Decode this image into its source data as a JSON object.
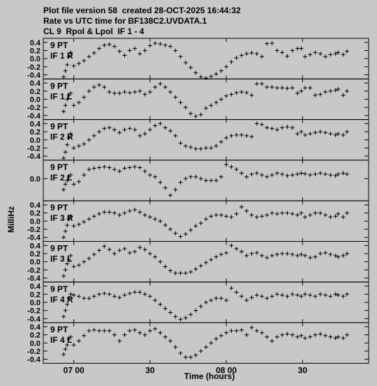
{
  "header": {
    "line1": "Plot file version 58  created 28-OCT-2025 16:44:32",
    "line2": "Rate vs UTC time for BF138C2.UVDATA.1",
    "line3": "CL 9  Rpol & Lpol  IF 1 - 4"
  },
  "chart_data": {
    "type": "scatter",
    "xlabel": "Time (hours)",
    "ylabel": "MilliHz",
    "x_ticks": [
      "07 00",
      "30",
      "08 00",
      "30"
    ],
    "x_tick_values_minutes": [
      0,
      30,
      60,
      90
    ],
    "xlim_minutes": [
      -12,
      116
    ],
    "marker": "+",
    "panels": [
      {
        "label_pt": "9 PT",
        "label_if": "IF 1 R",
        "ylim": [
          -0.5,
          0.5
        ],
        "y_ticks": [
          "0.4",
          "0.2",
          "0.0",
          "-0.2",
          "-0.4"
        ],
        "tick_values": [
          0.4,
          0.2,
          0.0,
          -0.2,
          -0.4
        ],
        "x": [
          -4,
          -3.3,
          -2.6,
          -1.9,
          -1.2,
          0,
          2,
          4,
          6,
          8,
          10,
          12,
          14,
          16,
          18,
          20,
          22,
          24,
          26,
          28,
          30,
          32,
          34,
          36,
          38,
          40,
          42,
          44,
          46,
          48,
          50,
          52,
          54,
          56,
          58,
          60,
          62,
          64,
          66,
          68,
          70,
          72,
          74,
          76,
          78,
          80,
          82,
          84,
          86,
          88,
          89.5,
          91,
          93,
          95,
          97,
          99,
          101,
          103,
          104,
          106,
          107.5
        ],
        "y": [
          -0.45,
          -0.3,
          -0.15,
          0.05,
          0.15,
          -0.18,
          -0.12,
          -0.05,
          0.05,
          0.14,
          0.25,
          0.33,
          0.35,
          0.3,
          0.18,
          0.08,
          0.2,
          0.25,
          0.12,
          0.2,
          0.32,
          0.38,
          0.36,
          0.33,
          0.3,
          0.2,
          0.05,
          -0.1,
          -0.22,
          -0.35,
          -0.45,
          -0.48,
          -0.44,
          -0.38,
          -0.3,
          -0.2,
          -0.08,
          0.02,
          0.08,
          0.12,
          0.14,
          0.12,
          0.05,
          0.37,
          0.38,
          0.2,
          0.15,
          0.06,
          0.2,
          0.25,
          0.25,
          0.05,
          0.1,
          0.15,
          0.12,
          0.05,
          0.1,
          0.12,
          0.15,
          0.1,
          0.18
        ]
      },
      {
        "label_pt": "9 PT",
        "label_if": "IF 1 L",
        "ylim": [
          -0.5,
          0.5
        ],
        "y_ticks": [
          "0.4",
          "0.2",
          "0.0",
          "-0.2",
          "-0.4"
        ],
        "tick_values": [
          0.4,
          0.2,
          0.0,
          -0.2,
          -0.4
        ],
        "x": [
          -4,
          -3.3,
          -2.6,
          -1.9,
          -1.2,
          0,
          2,
          4,
          6,
          8,
          10,
          12,
          14,
          16,
          18,
          20,
          22,
          24,
          26,
          28,
          30,
          32,
          34,
          36,
          38,
          40,
          42,
          44,
          46,
          48,
          50,
          52,
          54,
          56,
          58,
          60,
          62,
          64,
          66,
          68,
          70,
          72,
          74,
          76,
          78,
          80,
          82,
          84,
          86,
          88,
          89.5,
          91,
          93,
          95,
          97,
          99,
          101,
          103,
          104,
          106,
          107.5
        ],
        "y": [
          -0.3,
          -0.15,
          0,
          0.1,
          0.15,
          -0.15,
          -0.08,
          0.05,
          0.2,
          0.3,
          0.35,
          0.3,
          0.18,
          0.15,
          0.15,
          0.18,
          0.16,
          0.18,
          0.2,
          0.12,
          0.18,
          0.3,
          0.38,
          0.3,
          0.18,
          0.05,
          -0.08,
          -0.2,
          -0.35,
          -0.42,
          -0.38,
          -0.22,
          -0.15,
          -0.08,
          0,
          0.08,
          0.12,
          0.16,
          0.18,
          0.16,
          0.1,
          0.38,
          0.38,
          0.3,
          0.3,
          0.28,
          0.28,
          0.27,
          0.28,
          0.15,
          0.2,
          0.28,
          0.28,
          0.1,
          0.12,
          0.18,
          0.2,
          0.22,
          0.25,
          0.1,
          0.2
        ]
      },
      {
        "label_pt": "9 PT",
        "label_if": "IF 2 R",
        "ylim": [
          -0.5,
          0.5
        ],
        "y_ticks": [
          "0.4",
          "0.2",
          "0.0",
          "-0.2",
          "-0.4"
        ],
        "tick_values": [
          0.4,
          0.2,
          0.0,
          -0.2,
          -0.4
        ],
        "x": [
          -4,
          -3.3,
          -2.6,
          -1.9,
          -1.2,
          0,
          2,
          4,
          6,
          8,
          10,
          12,
          14,
          16,
          18,
          20,
          22,
          24,
          26,
          28,
          30,
          32,
          34,
          36,
          38,
          40,
          42,
          44,
          46,
          48,
          50,
          52,
          54,
          56,
          58,
          60,
          62,
          64,
          66,
          68,
          70,
          72,
          74,
          76,
          78,
          80,
          82,
          84,
          86,
          88,
          89.5,
          91,
          93,
          95,
          97,
          99,
          101,
          103,
          104,
          106,
          107.5
        ],
        "y": [
          -0.45,
          -0.3,
          -0.12,
          0.05,
          0.15,
          -0.2,
          -0.15,
          -0.1,
          0,
          0.1,
          0.2,
          0.28,
          0.3,
          0.25,
          0.18,
          0.25,
          0.28,
          0.25,
          0.1,
          0.15,
          0.25,
          0.35,
          0.4,
          0.3,
          0.22,
          0.1,
          -0.08,
          -0.15,
          -0.18,
          -0.22,
          -0.22,
          -0.2,
          -0.2,
          -0.15,
          -0.05,
          0.05,
          0.1,
          0.12,
          0.12,
          0.1,
          0.08,
          0.4,
          0.38,
          0.3,
          0.28,
          0.25,
          0.3,
          0.32,
          0.3,
          0.15,
          0.2,
          0.12,
          0.15,
          0.18,
          0.2,
          0.18,
          0.15,
          0.12,
          0.15,
          0.12,
          0.2
        ]
      },
      {
        "label_pt": "9 PT",
        "label_if": "IF 2 L",
        "ylim": [
          -0.6,
          0.5
        ],
        "y_ticks": [
          "0.0"
        ],
        "tick_values": [
          0.0
        ],
        "x": [
          -4,
          -3.3,
          -2.6,
          -1.9,
          -1.2,
          0,
          2,
          4,
          6,
          8,
          10,
          12,
          14,
          16,
          18,
          20,
          22,
          24,
          26,
          28,
          30,
          32,
          34,
          36,
          38,
          40,
          42,
          44,
          46,
          48,
          50,
          52,
          54,
          56,
          58,
          60,
          62,
          64,
          66,
          68,
          70,
          72,
          74,
          76,
          78,
          80,
          82,
          84,
          86,
          88,
          89.5,
          91,
          93,
          95,
          97,
          99,
          101,
          103,
          104,
          106,
          107.5
        ],
        "y": [
          -0.3,
          -0.15,
          -0.05,
          0.05,
          0.1,
          -0.15,
          -0.08,
          0.1,
          0.25,
          0.28,
          0.3,
          0.32,
          0.3,
          0.25,
          0.2,
          0.28,
          0.3,
          0.32,
          0.3,
          0.2,
          0.1,
          0.05,
          -0.1,
          -0.25,
          -0.45,
          -0.3,
          -0.1,
          0,
          0.05,
          0.05,
          0,
          -0.05,
          -0.05,
          -0.05,
          0.05,
          0.38,
          0.32,
          0.25,
          0.15,
          0.05,
          0.12,
          0.15,
          0.1,
          0.05,
          0.1,
          0.15,
          0.12,
          0.08,
          0.1,
          0.12,
          0.15,
          0.13,
          0.1,
          0.12,
          0.15,
          0.12,
          0.1,
          0.08,
          0.12,
          0.15,
          0.12
        ]
      },
      {
        "label_pt": "9 PT",
        "label_if": "IF 3 R",
        "ylim": [
          -0.5,
          0.5
        ],
        "y_ticks": [
          "0.4",
          "0.2",
          "0.0",
          "-0.2",
          "-0.4"
        ],
        "tick_values": [
          0.4,
          0.2,
          0.0,
          -0.2,
          -0.4
        ],
        "x": [
          -4,
          -3.3,
          -2.6,
          -1.9,
          -1.2,
          0,
          2,
          4,
          6,
          8,
          10,
          12,
          14,
          16,
          18,
          20,
          22,
          24,
          26,
          28,
          30,
          32,
          34,
          36,
          38,
          40,
          42,
          44,
          46,
          48,
          50,
          52,
          54,
          56,
          58,
          60,
          62,
          64,
          66,
          68,
          70,
          72,
          74,
          76,
          78,
          80,
          82,
          84,
          86,
          88,
          89.5,
          91,
          93,
          95,
          97,
          99,
          101,
          103,
          104,
          106,
          107.5
        ],
        "y": [
          -0.4,
          -0.25,
          -0.1,
          0.05,
          0.12,
          -0.12,
          -0.08,
          -0.02,
          0.05,
          0.12,
          0.18,
          0.22,
          0.22,
          0.2,
          0.15,
          0.2,
          0.25,
          0.28,
          0.22,
          0.15,
          0.1,
          0.05,
          0,
          -0.1,
          -0.2,
          -0.3,
          -0.38,
          -0.32,
          -0.22,
          -0.12,
          -0.05,
          0.05,
          0.12,
          0.15,
          0.15,
          0.12,
          0.1,
          0.18,
          0.35,
          0.25,
          0.15,
          0.1,
          0.12,
          0.15,
          0.2,
          0.18,
          0.2,
          0.2,
          0.18,
          0.15,
          0.2,
          0.1,
          0.15,
          0.2,
          0.2,
          0.15,
          0.1,
          0.12,
          0.18,
          0.1,
          0.2
        ]
      },
      {
        "label_pt": "9 PT",
        "label_if": "IF 3 L",
        "ylim": [
          -0.5,
          0.5
        ],
        "y_ticks": [
          "0.4",
          "0.2",
          "0.0",
          "-0.2",
          "-0.4"
        ],
        "tick_values": [
          0.4,
          0.2,
          0.0,
          -0.2,
          -0.4
        ],
        "x": [
          -4,
          -3.3,
          -2.6,
          -1.9,
          -1.2,
          0,
          2,
          4,
          6,
          8,
          10,
          12,
          14,
          16,
          18,
          20,
          22,
          24,
          26,
          28,
          30,
          32,
          34,
          36,
          38,
          40,
          42,
          44,
          46,
          48,
          50,
          52,
          54,
          56,
          58,
          60,
          62,
          64,
          66,
          68,
          70,
          72,
          74,
          76,
          78,
          80,
          82,
          84,
          86,
          88,
          89.5,
          91,
          93,
          95,
          97,
          99,
          101,
          103,
          104,
          106,
          107.5
        ],
        "y": [
          -0.35,
          -0.2,
          -0.05,
          0.05,
          0.15,
          -0.12,
          -0.08,
          0,
          0.08,
          0.18,
          0.28,
          0.38,
          0.3,
          0.2,
          0.28,
          0.32,
          0.22,
          0.25,
          0.35,
          0.3,
          0.2,
          0.12,
          0,
          -0.12,
          -0.22,
          -0.28,
          -0.28,
          -0.28,
          -0.25,
          -0.18,
          -0.1,
          -0.02,
          0.05,
          0.12,
          0.18,
          0.22,
          0.4,
          0.32,
          0.25,
          0.15,
          0.2,
          0.22,
          0.15,
          0.1,
          0.15,
          0.18,
          0.2,
          0.2,
          0.18,
          0.15,
          0.18,
          0.15,
          0.1,
          0.12,
          0.2,
          0.22,
          0.18,
          0.15,
          0.12,
          0.15,
          0.2
        ]
      },
      {
        "label_pt": "9 PT",
        "label_if": "IF 4 R",
        "ylim": [
          -0.5,
          0.5
        ],
        "y_ticks": [
          "0.4",
          "0.2",
          "0.0",
          "-0.2",
          "-0.4"
        ],
        "tick_values": [
          0.4,
          0.2,
          0.0,
          -0.2,
          -0.4
        ],
        "x": [
          -4,
          -3.3,
          -2.6,
          -1.9,
          -1.2,
          0,
          2,
          4,
          6,
          8,
          10,
          12,
          14,
          16,
          18,
          20,
          22,
          24,
          26,
          28,
          30,
          32,
          34,
          36,
          38,
          40,
          42,
          44,
          46,
          48,
          50,
          52,
          54,
          56,
          58,
          60,
          62,
          64,
          66,
          68,
          70,
          72,
          74,
          76,
          78,
          80,
          82,
          84,
          86,
          88,
          89.5,
          91,
          93,
          95,
          97,
          99,
          101,
          103,
          104,
          106,
          107.5
        ],
        "y": [
          -0.35,
          -0.2,
          -0.05,
          0.1,
          0.2,
          0.18,
          0.15,
          0.1,
          0.1,
          0.15,
          0.2,
          0.22,
          0.2,
          0.15,
          0.12,
          0.18,
          0.22,
          0.25,
          0.25,
          0.2,
          0.15,
          0.05,
          -0.05,
          -0.15,
          -0.25,
          -0.35,
          -0.42,
          -0.38,
          -0.3,
          -0.2,
          -0.1,
          0,
          0.05,
          0.1,
          0.1,
          0.05,
          0.35,
          0.25,
          0.15,
          0.05,
          0.12,
          0.18,
          0.15,
          0.1,
          0.15,
          0.2,
          0.18,
          0.15,
          0.2,
          0.18,
          0.15,
          0.2,
          0.18,
          0.15,
          0.2,
          0.18,
          0.15,
          0.2,
          0.18,
          0.15,
          0.2
        ]
      },
      {
        "label_pt": "9 PT",
        "label_if": "IF 4 L",
        "ylim": [
          -0.5,
          0.5
        ],
        "y_ticks": [
          "0.4",
          "0.2",
          "0.0",
          "-0.2",
          "-0.4"
        ],
        "tick_values": [
          0.4,
          0.2,
          0.0,
          -0.2,
          -0.4
        ],
        "x": [
          -4,
          -3.3,
          -2.6,
          -1.9,
          -1.2,
          0,
          2,
          4,
          6,
          8,
          10,
          12,
          14,
          16,
          18,
          20,
          22,
          24,
          26,
          28,
          30,
          32,
          34,
          36,
          38,
          40,
          42,
          44,
          46,
          48,
          50,
          52,
          54,
          56,
          58,
          60,
          62,
          64,
          66,
          68,
          70,
          72,
          74,
          76,
          78,
          80,
          82,
          84,
          86,
          88,
          89.5,
          91,
          93,
          95,
          97,
          99,
          101,
          103,
          104,
          106,
          107.5
        ],
        "y": [
          -0.28,
          -0.15,
          -0.05,
          0.1,
          0.15,
          -0.05,
          0.05,
          0.18,
          0.3,
          0.32,
          0.3,
          0.3,
          0.3,
          0.2,
          0.05,
          0.2,
          0.3,
          0.32,
          0.25,
          0.2,
          0.3,
          0.35,
          0.25,
          0.15,
          0.05,
          -0.1,
          -0.25,
          -0.35,
          -0.35,
          -0.3,
          -0.2,
          -0.1,
          0,
          0.1,
          0.18,
          0.25,
          0.3,
          0.3,
          0.32,
          0.2,
          0.38,
          0.3,
          0.25,
          0.15,
          0.05,
          0.15,
          0.2,
          0.22,
          0.2,
          0.15,
          0.18,
          0.12,
          0.15,
          0.2,
          0.22,
          0.18,
          0.15,
          0.12,
          0.15,
          0.12,
          0.2
        ]
      }
    ]
  }
}
